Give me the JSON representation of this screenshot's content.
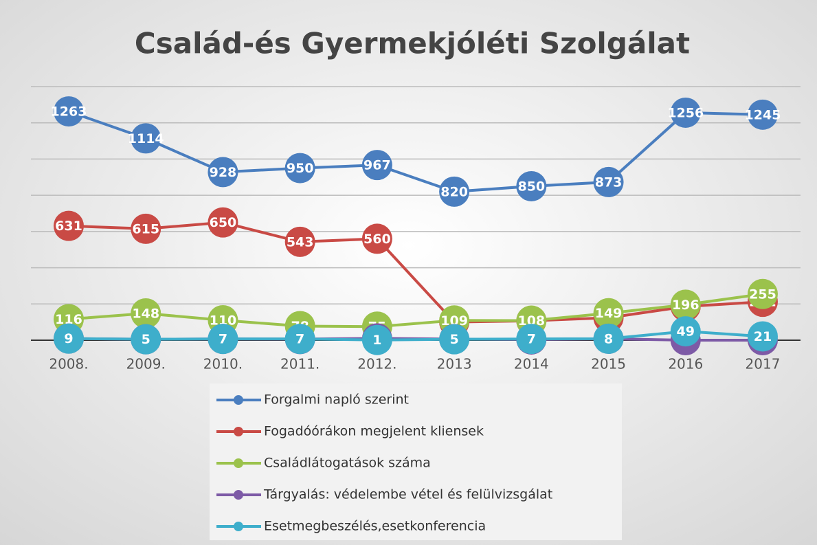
{
  "chart_data": {
    "type": "line",
    "title": "Család-és Gyermekjóléti Szolgálat",
    "categories": [
      "2008.",
      "2009.",
      "2010.",
      "2011.",
      "2012.",
      "2013",
      "2014",
      "2015",
      "2016",
      "2017"
    ],
    "series": [
      {
        "name": "Forgalmi napló szerint",
        "color": "#4a7ebf",
        "values": [
          1263,
          1114,
          928,
          950,
          967,
          820,
          850,
          873,
          1256,
          1245
        ]
      },
      {
        "name": "Fogadóórákon megjelent kliensek",
        "color": "#c94a45",
        "values": [
          631,
          615,
          650,
          543,
          560,
          100,
          107,
          124,
          186,
          212
        ]
      },
      {
        "name": "Családlátogatások száma",
        "color": "#9bc24c",
        "values": [
          116,
          148,
          110,
          78,
          75,
          109,
          108,
          149,
          196,
          255
        ]
      },
      {
        "name": "Tárgyalás: védelembe vétel és felülvizsgálat",
        "color": "#7d5aa6",
        "values": [
          9,
          5,
          7,
          6,
          10,
          6,
          4,
          8,
          0,
          0
        ]
      },
      {
        "name": "Esetmegbeszélés,esetkonferencia",
        "color": "#3eaecb",
        "values": [
          9,
          5,
          7,
          7,
          1,
          5,
          7,
          8,
          49,
          21
        ]
      }
    ],
    "ylim": [
      0,
      1400
    ],
    "yticks": [
      0,
      200,
      400,
      600,
      800,
      1000,
      1200,
      1400
    ],
    "grid": true
  }
}
